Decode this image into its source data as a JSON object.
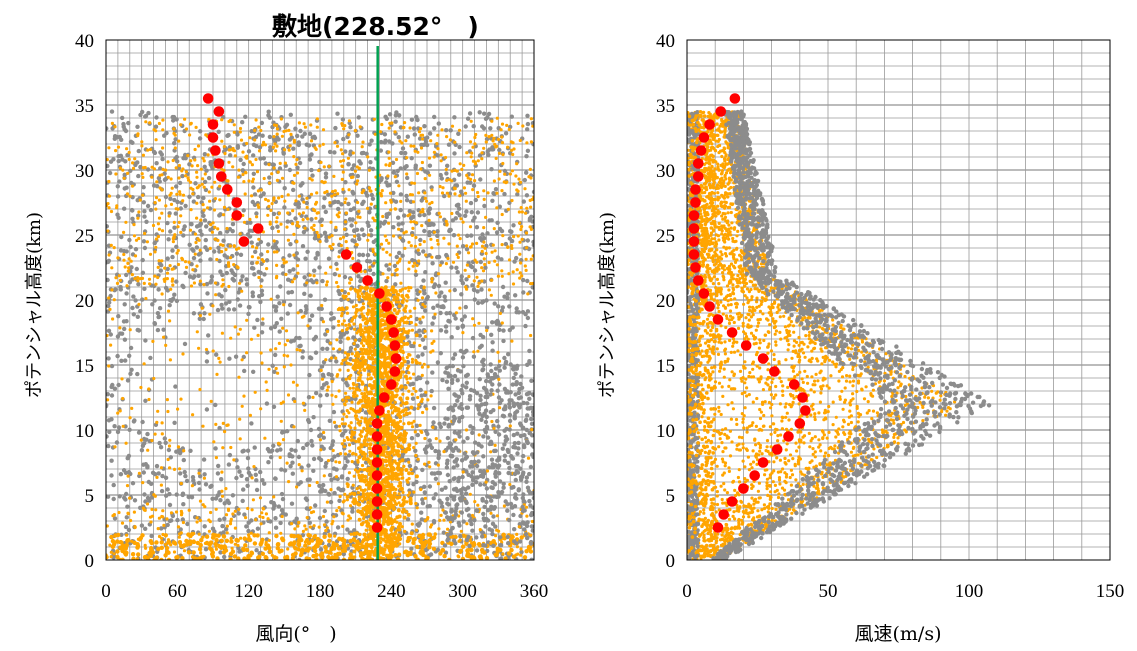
{
  "chart_data": [
    {
      "type": "scatter",
      "title": "",
      "xlabel": "風向(°　)",
      "ylabel": "ポテンシャル高度(km)",
      "xlim": [
        0,
        360
      ],
      "ylim": [
        0,
        40
      ],
      "xticks": [
        "0",
        "60",
        "120",
        "180",
        "240",
        "300",
        "360"
      ],
      "yticks": [
        "0",
        "5",
        "10",
        "15",
        "20",
        "25",
        "30",
        "35",
        "40"
      ],
      "grid": true,
      "colors": {
        "grey": "#8c8c8c",
        "orange": "#ffa500",
        "red": "#ff0000",
        "green": "#00a050"
      },
      "reference_line": {
        "x": 228.52,
        "label": "敷地(228.52°　)"
      },
      "series": [
        {
          "color": "#ff0000",
          "points": [
            {
              "x": 228,
              "y": 2.5
            },
            {
              "x": 228,
              "y": 3.5
            },
            {
              "x": 228,
              "y": 4.5
            },
            {
              "x": 228,
              "y": 5.5
            },
            {
              "x": 228,
              "y": 6.5
            },
            {
              "x": 228,
              "y": 7.5
            },
            {
              "x": 228,
              "y": 8.5
            },
            {
              "x": 228,
              "y": 9.5
            },
            {
              "x": 228,
              "y": 10.5
            },
            {
              "x": 230,
              "y": 11.5
            },
            {
              "x": 234,
              "y": 12.5
            },
            {
              "x": 240,
              "y": 13.5
            },
            {
              "x": 243,
              "y": 14.5
            },
            {
              "x": 244,
              "y": 15.5
            },
            {
              "x": 243,
              "y": 16.5
            },
            {
              "x": 242,
              "y": 17.5
            },
            {
              "x": 240,
              "y": 18.5
            },
            {
              "x": 236,
              "y": 19.5
            },
            {
              "x": 230,
              "y": 20.5
            },
            {
              "x": 220,
              "y": 21.5
            },
            {
              "x": 211,
              "y": 22.5
            },
            {
              "x": 202,
              "y": 23.5
            },
            {
              "x": 116,
              "y": 24.5
            },
            {
              "x": 128,
              "y": 25.5
            },
            {
              "x": 110,
              "y": 26.5
            },
            {
              "x": 110,
              "y": 27.5
            },
            {
              "x": 102,
              "y": 28.5
            },
            {
              "x": 97,
              "y": 29.5
            },
            {
              "x": 95,
              "y": 30.5
            },
            {
              "x": 92,
              "y": 31.5
            },
            {
              "x": 90,
              "y": 32.5
            },
            {
              "x": 90,
              "y": 33.5
            },
            {
              "x": 95,
              "y": 34.5
            },
            {
              "x": 86,
              "y": 35.5
            }
          ]
        }
      ]
    },
    {
      "type": "scatter",
      "title": "",
      "xlabel": "風速(m/s)",
      "ylabel": "ポテンシャル高度(km)",
      "xlim": [
        0,
        150
      ],
      "ylim": [
        0,
        40
      ],
      "xticks": [
        "0",
        "50",
        "100",
        "150"
      ],
      "yticks": [
        "0",
        "5",
        "10",
        "15",
        "20",
        "25",
        "30",
        "35",
        "40"
      ],
      "grid": true,
      "colors": {
        "grey": "#8c8c8c",
        "orange": "#ffa500",
        "red": "#ff0000"
      },
      "series": [
        {
          "color": "#ff0000",
          "points": [
            {
              "x": 11,
              "y": 2.5
            },
            {
              "x": 13,
              "y": 3.5
            },
            {
              "x": 16,
              "y": 4.5
            },
            {
              "x": 20,
              "y": 5.5
            },
            {
              "x": 24,
              "y": 6.5
            },
            {
              "x": 27,
              "y": 7.5
            },
            {
              "x": 32,
              "y": 8.5
            },
            {
              "x": 36,
              "y": 9.5
            },
            {
              "x": 40,
              "y": 10.5
            },
            {
              "x": 42,
              "y": 11.5
            },
            {
              "x": 41,
              "y": 12.5
            },
            {
              "x": 38,
              "y": 13.5
            },
            {
              "x": 31,
              "y": 14.5
            },
            {
              "x": 27,
              "y": 15.5
            },
            {
              "x": 21,
              "y": 16.5
            },
            {
              "x": 16,
              "y": 17.5
            },
            {
              "x": 11,
              "y": 18.5
            },
            {
              "x": 8,
              "y": 19.5
            },
            {
              "x": 6,
              "y": 20.5
            },
            {
              "x": 4,
              "y": 21.5
            },
            {
              "x": 3,
              "y": 22.5
            },
            {
              "x": 2.5,
              "y": 23.5
            },
            {
              "x": 2.5,
              "y": 24.5
            },
            {
              "x": 2.5,
              "y": 25.5
            },
            {
              "x": 2.5,
              "y": 26.5
            },
            {
              "x": 3,
              "y": 27.5
            },
            {
              "x": 3,
              "y": 28.5
            },
            {
              "x": 4,
              "y": 29.5
            },
            {
              "x": 4,
              "y": 30.5
            },
            {
              "x": 5,
              "y": 31.5
            },
            {
              "x": 6,
              "y": 32.5
            },
            {
              "x": 8,
              "y": 33.5
            },
            {
              "x": 12,
              "y": 34.5
            },
            {
              "x": 17,
              "y": 35.5
            }
          ]
        }
      ]
    }
  ]
}
